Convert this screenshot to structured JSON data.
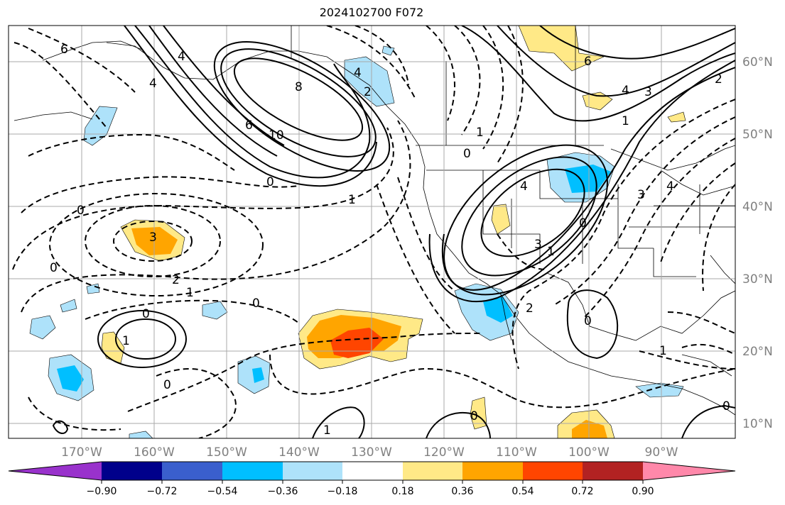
{
  "title": "2024102700 F072",
  "map": {
    "longitude_labels": [
      "170°W",
      "160°W",
      "150°W",
      "140°W",
      "130°W",
      "120°W",
      "110°W",
      "100°W",
      "90°W"
    ],
    "latitude_labels": [
      "60°N",
      "50°N",
      "40°N",
      "30°N",
      "20°N",
      "10°N"
    ],
    "contour_labels": [
      "6",
      "4",
      "8",
      "10",
      "6",
      "4",
      "2",
      "0",
      "1",
      "0",
      "3",
      "2",
      "1",
      "0",
      "0",
      "0",
      "1",
      "1",
      "0",
      "4",
      "6",
      "4",
      "3",
      "2",
      "1",
      "0",
      "1",
      "4",
      "2",
      "3",
      "1",
      "0",
      "1",
      "0",
      "0",
      "0",
      "3",
      "4"
    ]
  },
  "colorbar": {
    "tick_labels": [
      "−0.90",
      "−0.72",
      "−0.54",
      "−0.36",
      "−0.18",
      "0.18",
      "0.36",
      "0.54",
      "0.72",
      "0.90"
    ],
    "colors": [
      "#9932cc",
      "#00008b",
      "#3a5fcd",
      "#00bfff",
      "#aee2fa",
      "#ffffff",
      "#ffe987",
      "#ffa500",
      "#ff4500",
      "#b22222",
      "#ff88aa"
    ]
  }
}
